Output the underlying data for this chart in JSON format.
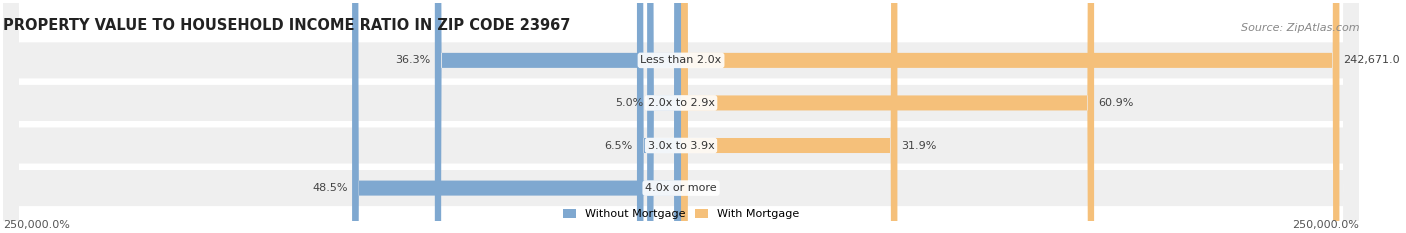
{
  "title": "PROPERTY VALUE TO HOUSEHOLD INCOME RATIO IN ZIP CODE 23967",
  "source": "Source: ZipAtlas.com",
  "categories": [
    "Less than 2.0x",
    "2.0x to 2.9x",
    "3.0x to 3.9x",
    "4.0x or more"
  ],
  "without_mortgage": [
    36.3,
    5.0,
    6.5,
    48.5
  ],
  "with_mortgage": [
    242671.0,
    60.9,
    31.9,
    0.0
  ],
  "without_mortgage_color": "#7fa8d0",
  "with_mortgage_color": "#f5c07a",
  "row_bg_color": "#efefef",
  "max_value": 250000,
  "x_min_label": "250,000.0%",
  "x_max_label": "250,000.0%",
  "legend_without": "Without Mortgage",
  "legend_with": "With Mortgage",
  "title_fontsize": 10.5,
  "source_fontsize": 8,
  "label_fontsize": 8,
  "category_fontsize": 8
}
